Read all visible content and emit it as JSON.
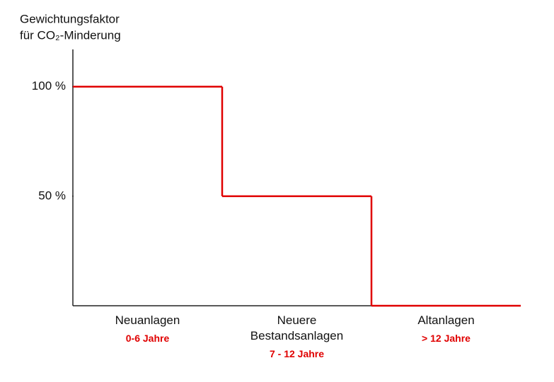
{
  "chart_data": {
    "type": "step",
    "ylabel": [
      "Gewichtungsfaktor",
      "für CO₂-Minderung"
    ],
    "categories": [
      "Neuanlagen",
      "Neuere Bestandsanlagen",
      "Altanlagen"
    ],
    "sublabels": [
      "0-6 Jahre",
      "7 - 12 Jahre",
      "> 12 Jahre"
    ],
    "sublabel_color": "#e00000",
    "values": [
      100,
      50,
      0
    ],
    "color": "#e00000",
    "ylim": [
      0,
      117
    ],
    "yticks": [
      {
        "value": 50,
        "label": "50 %"
      },
      {
        "value": 100,
        "label": "100 %"
      }
    ]
  }
}
